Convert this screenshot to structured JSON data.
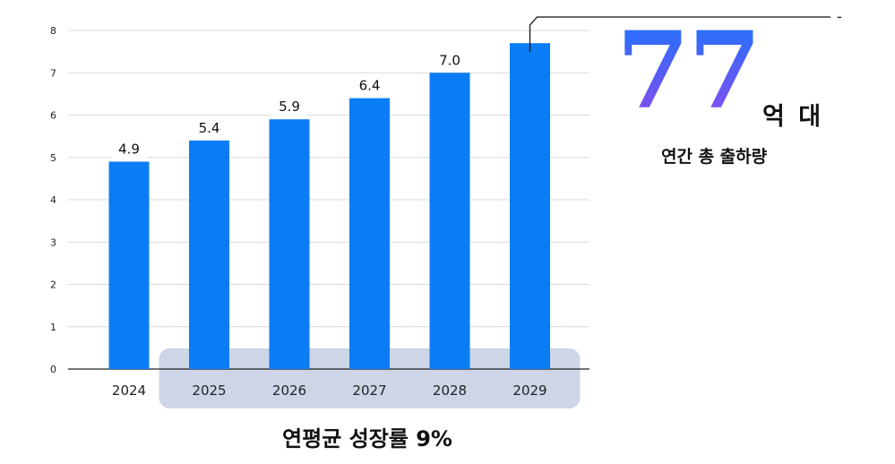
{
  "chart_data": {
    "type": "bar",
    "categories": [
      "2024",
      "2025",
      "2026",
      "2027",
      "2028",
      "2029"
    ],
    "values": [
      4.9,
      5.4,
      5.9,
      6.4,
      7.0,
      7.7
    ],
    "data_labels": [
      "4.9",
      "5.4",
      "5.9",
      "6.4",
      "7.0",
      ""
    ],
    "y_ticks": [
      "0",
      "1",
      "2",
      "3",
      "4",
      "5",
      "6",
      "7",
      "8"
    ],
    "ylim": [
      0,
      8
    ],
    "grid": true,
    "highlight_categories": [
      "2025",
      "2026",
      "2027",
      "2028",
      "2029"
    ],
    "title": "",
    "xlabel": "",
    "ylabel": "",
    "colors": {
      "bar": "#0a7df5",
      "highlight_band": "#cdd5e6",
      "grid": "#d9d9d9",
      "axis": "#222222"
    }
  },
  "callout": {
    "number": "77",
    "unit": "억 대",
    "caption": "연간 총 출하량",
    "marker": "-"
  },
  "footer": {
    "cagr_label": "연평균 성장률 9%"
  }
}
